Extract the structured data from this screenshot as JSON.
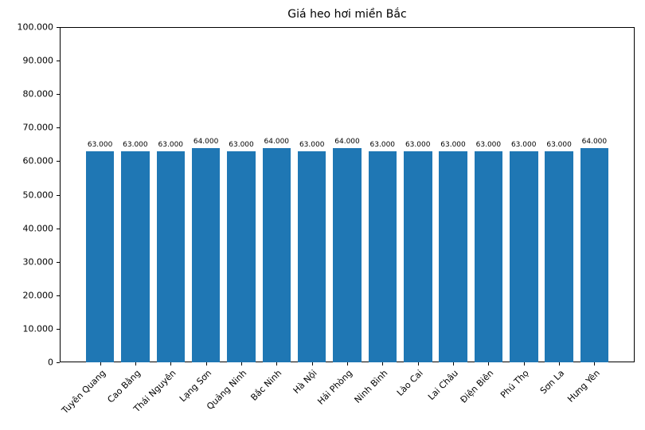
{
  "chart_data": {
    "type": "bar",
    "title": "Giá heo hơi miền Bắc",
    "categories": [
      "Tuyên Quang",
      "Cao Bằng",
      "Thái Nguyên",
      "Lạng Sơn",
      "Quảng Ninh",
      "Bắc Ninh",
      "Hà Nội",
      "Hải Phòng",
      "Ninh Bình",
      "Lào Cai",
      "Lai Châu",
      "Điện Biên",
      "Phú Thọ",
      "Sơn La",
      "Hưng Yên"
    ],
    "values": [
      63000,
      63000,
      63000,
      64000,
      63000,
      64000,
      63000,
      64000,
      63000,
      63000,
      63000,
      63000,
      63000,
      63000,
      64000
    ],
    "bar_labels": [
      "63.000",
      "63.000",
      "63.000",
      "64.000",
      "63.000",
      "64.000",
      "63.000",
      "64.000",
      "63.000",
      "63.000",
      "63.000",
      "63.000",
      "63.000",
      "63.000",
      "64.000"
    ],
    "xlabel": "",
    "ylabel": "",
    "ylim": [
      0,
      100000
    ],
    "ytick_interval": 10000,
    "ytick_labels": [
      "0",
      "10.000",
      "20.000",
      "30.000",
      "40.000",
      "50.000",
      "60.000",
      "70.000",
      "80.000",
      "90.000",
      "100.000"
    ],
    "x_tick_rotation_deg": 45,
    "grid": false,
    "bar_color": "#1f77b4",
    "text_color": "#000000",
    "background_color": "#ffffff"
  }
}
